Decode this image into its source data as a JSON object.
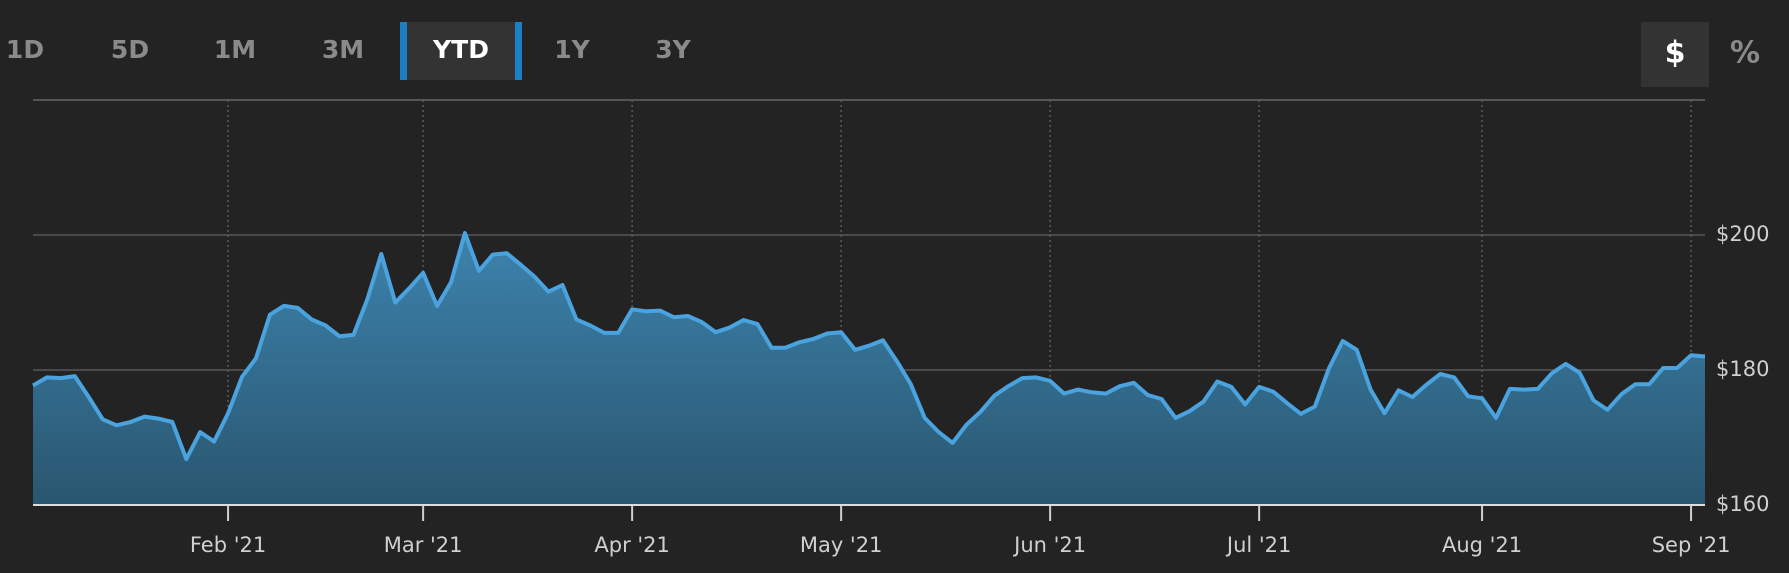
{
  "controls": {
    "ranges": [
      "1D",
      "5D",
      "1M",
      "3M",
      "YTD",
      "1Y",
      "3Y"
    ],
    "selected_range": 4,
    "units": [
      "$",
      "%"
    ],
    "selected_unit": 0
  },
  "chart_data": {
    "type": "area",
    "color": "#4aa3df",
    "categories": [
      null,
      null,
      null,
      null,
      null,
      null,
      null,
      null,
      null,
      null,
      null,
      null,
      null,
      null,
      "Feb '21",
      null,
      null,
      null,
      null,
      null,
      null,
      null,
      null,
      null,
      null,
      null,
      null,
      null,
      "Mar '21",
      null,
      null,
      null,
      null,
      null,
      null,
      null,
      null,
      null,
      null,
      null,
      null,
      null,
      null,
      "Apr '21",
      null,
      null,
      null,
      null,
      null,
      null,
      null,
      null,
      null,
      null,
      null,
      null,
      null,
      null,
      "May '21",
      null,
      null,
      null,
      null,
      null,
      null,
      null,
      null,
      null,
      null,
      null,
      null,
      null,
      null,
      "Jun '21",
      null,
      null,
      null,
      null,
      null,
      null,
      null,
      null,
      null,
      null,
      null,
      null,
      null,
      null,
      "Jul '21",
      null,
      null,
      null,
      null,
      null,
      null,
      null,
      null,
      null,
      null,
      null,
      null,
      null,
      null,
      null,
      "Aug '21",
      null,
      null,
      null,
      null,
      null,
      null,
      null,
      null,
      null,
      null,
      null,
      null,
      null,
      null,
      "Sep '21",
      null
    ],
    "values": [
      177.7,
      178.9,
      178.8,
      179.1,
      176,
      172.7,
      171.8,
      172.3,
      173.1,
      172.8,
      172.3,
      166.8,
      170.8,
      169.4,
      173.6,
      179,
      181.7,
      188.2,
      189.5,
      189.2,
      187.5,
      186.6,
      185,
      185.2,
      190.5,
      197.2,
      190,
      192.1,
      194.4,
      189.5,
      193,
      200.3,
      194.7,
      197.1,
      197.3,
      195.6,
      193.8,
      191.6,
      192.6,
      187.5,
      186.6,
      185.5,
      185.5,
      189,
      188.7,
      188.8,
      187.8,
      188,
      187.1,
      185.6,
      186.3,
      187.4,
      186.8,
      183.3,
      183.3,
      184.1,
      184.6,
      185.4,
      185.6,
      183,
      183.6,
      184.4,
      181.3,
      177.9,
      172.9,
      170.8,
      169.2,
      171.9,
      173.8,
      176.2,
      177.6,
      178.8,
      178.9,
      178.4,
      176.5,
      177.1,
      176.7,
      176.5,
      177.6,
      178.1,
      176.3,
      175.7,
      172.9,
      173.9,
      175.3,
      178.3,
      177.5,
      174.9,
      177.5,
      176.8,
      175.1,
      173.5,
      174.6,
      180.2,
      184.3,
      183,
      177.1,
      173.6,
      177,
      176,
      177.8,
      179.4,
      178.9,
      176.1,
      175.8,
      172.9,
      177.2,
      177.1,
      177.2,
      179.5,
      180.9,
      179.6,
      175.5,
      174.1,
      176.4,
      177.9,
      177.9,
      180.3,
      180.3,
      182.2,
      182
    ],
    "ylim": [
      160,
      220
    ],
    "yticks": [
      {
        "value": 160,
        "label": "$160"
      },
      {
        "value": 180,
        "label": "$180"
      },
      {
        "value": 200,
        "label": "$200"
      }
    ],
    "grid": true
  }
}
